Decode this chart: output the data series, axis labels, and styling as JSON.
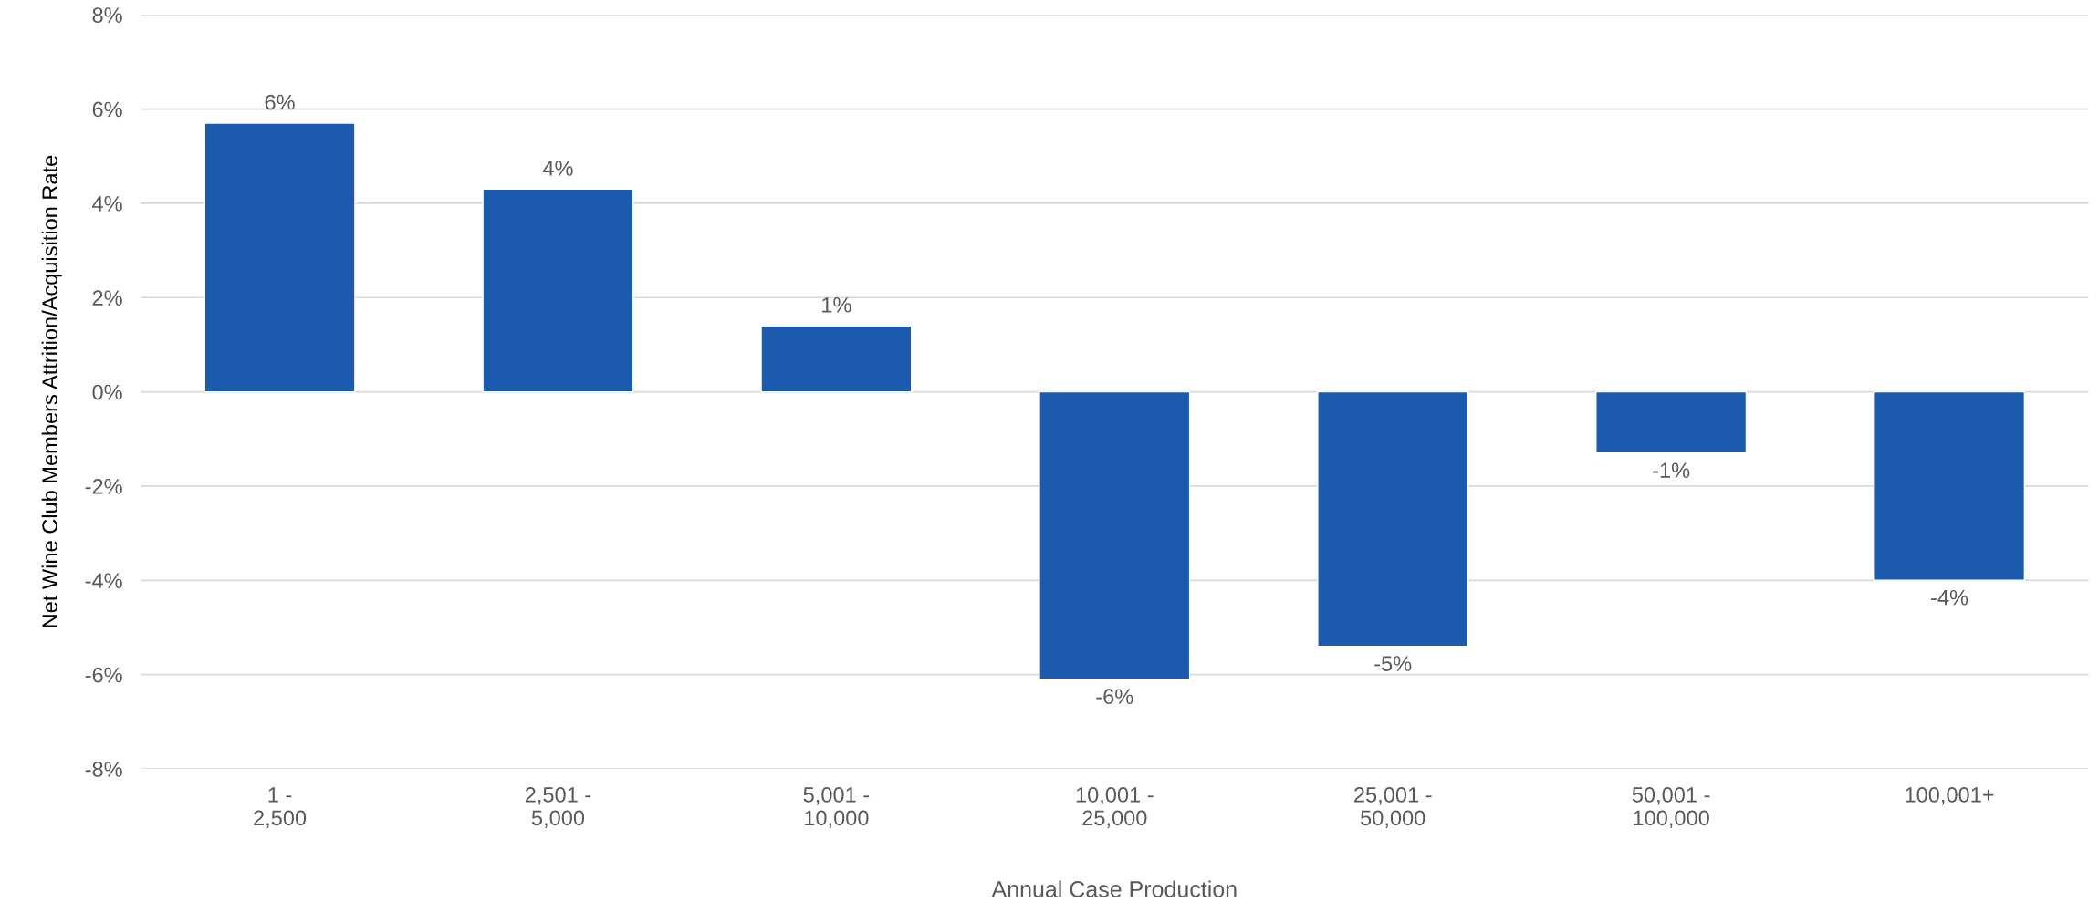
{
  "chart_data": {
    "type": "bar",
    "xlabel": "Annual Case Production",
    "ylabel": "Net Wine Club Members Attrition/Acquisition Rate",
    "categories": [
      "1 -\n2,500",
      "2,501 -\n5,000",
      "5,001 -\n10,000",
      "10,001 -\n25,000",
      "25,001 -\n50,000",
      "50,001 -\n100,000",
      "100,001+"
    ],
    "values": [
      5.7,
      4.3,
      1.4,
      -6.1,
      -5.4,
      -1.3,
      -4.0
    ],
    "value_labels": [
      "6%",
      "4%",
      "1%",
      "-6%",
      "-5%",
      "-1%",
      "-4%"
    ],
    "color": "#1c5aad",
    "ylim": [
      -8,
      8
    ],
    "yticks": [
      {
        "value": -8,
        "label": "-8%"
      },
      {
        "value": -6,
        "label": "-6%"
      },
      {
        "value": -4,
        "label": "-4%"
      },
      {
        "value": -2,
        "label": "-2%"
      },
      {
        "value": 0,
        "label": "0%"
      },
      {
        "value": 2,
        "label": "2%"
      },
      {
        "value": 4,
        "label": "4%"
      },
      {
        "value": 6,
        "label": "6%"
      },
      {
        "value": 8,
        "label": "8%"
      }
    ],
    "grid": "y"
  }
}
